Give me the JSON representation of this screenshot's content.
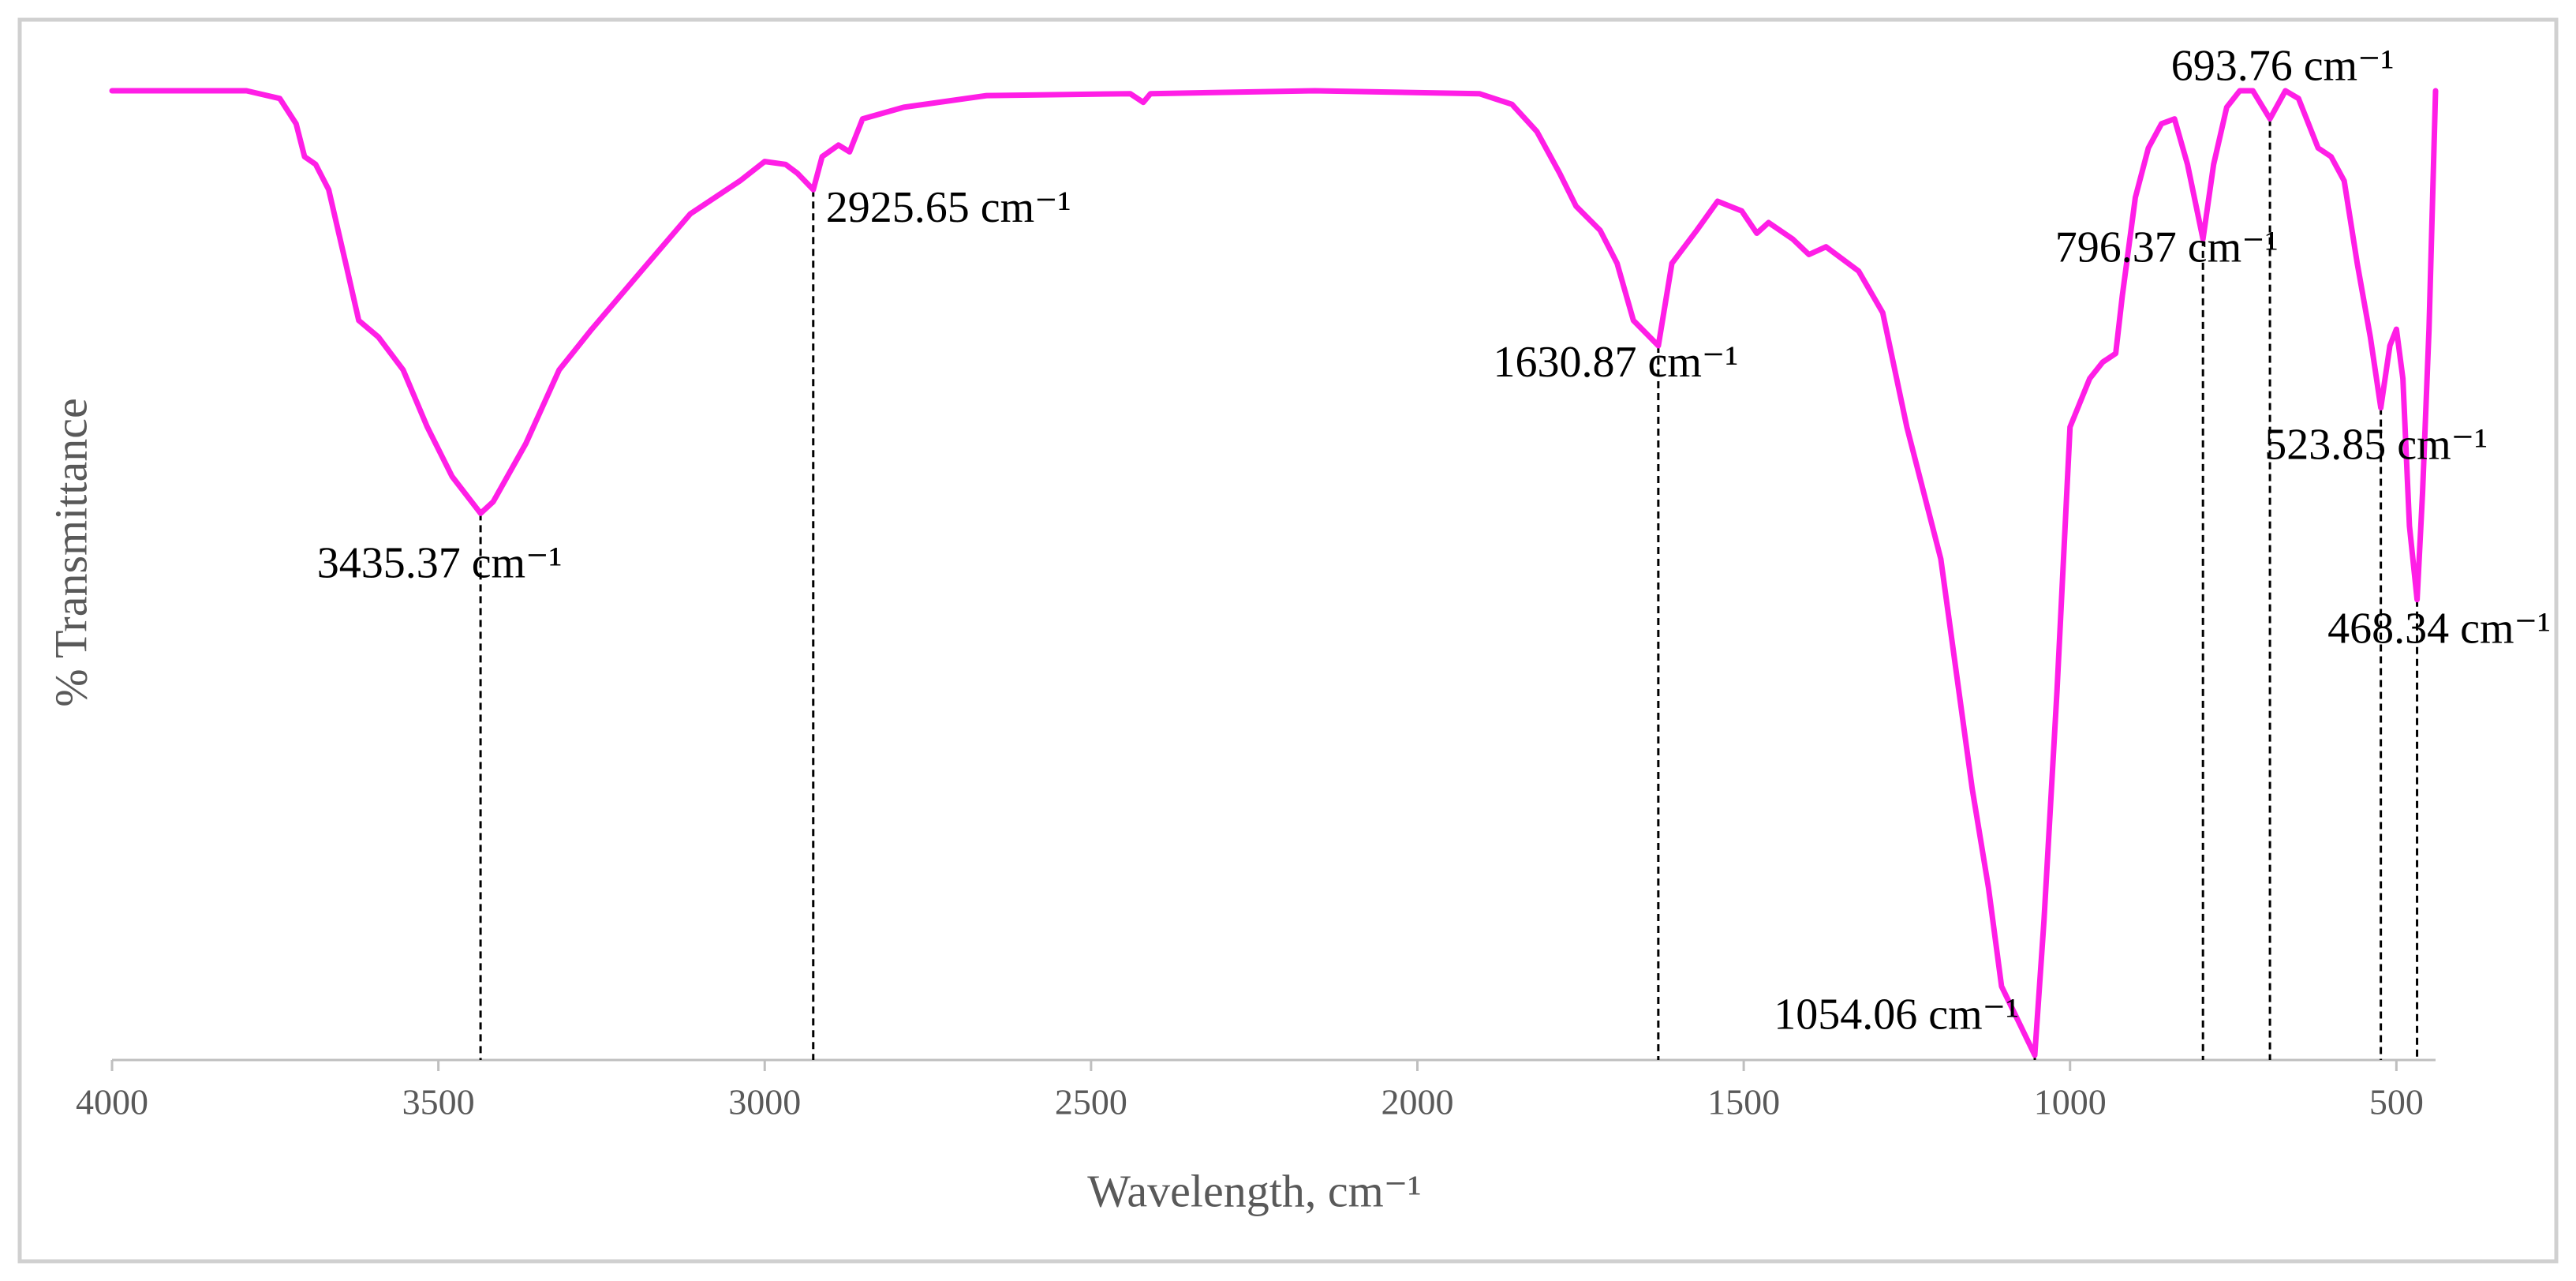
{
  "chart_data": {
    "type": "line",
    "x_label": "Wavelength, cm⁻¹",
    "y_label": "% Transmittance",
    "color": "#ff1ee6",
    "xlim": [
      4000,
      440
    ],
    "ylim": [
      0,
      100
    ],
    "xticks": [
      4000,
      3500,
      3000,
      2500,
      2000,
      1500,
      1000,
      500
    ],
    "x": [
      4000,
      3794,
      3743,
      3718,
      3705,
      3688,
      3668,
      3642,
      3622,
      3592,
      3554,
      3517,
      3479,
      3435.37,
      3416,
      3366,
      3315,
      3265,
      3189,
      3114,
      3038,
      3000,
      2968,
      2950,
      2925.65,
      2912,
      2887,
      2870,
      2850,
      2787,
      2660,
      2440,
      2420,
      2409,
      2157,
      1905,
      1855,
      1817,
      1782,
      1757,
      1720,
      1694,
      1669,
      1630.87,
      1610,
      1572,
      1540,
      1503,
      1480,
      1462,
      1425,
      1400,
      1374,
      1324,
      1287,
      1250,
      1198,
      1150,
      1125,
      1105,
      1054.06,
      1040,
      1020,
      1000,
      970,
      950,
      930,
      920,
      900,
      880,
      860,
      840,
      820,
      796.37,
      780,
      760,
      740,
      720,
      693.76,
      670,
      650,
      620,
      600,
      580,
      560,
      540,
      523.85,
      510,
      500,
      490,
      480,
      468.34,
      460,
      450,
      440
    ],
    "values": [
      100,
      100,
      99.2,
      96.6,
      93.2,
      92.4,
      89.8,
      82.2,
      76.3,
      74.6,
      71.2,
      65.3,
      60.2,
      56.4,
      57.6,
      63.6,
      71.2,
      75.4,
      81.4,
      87.3,
      90.7,
      92.7,
      92.4,
      91.5,
      89.8,
      93.2,
      94.4,
      93.7,
      97.1,
      98.3,
      99.5,
      99.7,
      98.8,
      99.7,
      100,
      99.7,
      98.6,
      95.8,
      91.5,
      88.1,
      85.6,
      82.2,
      76.3,
      73.7,
      82.2,
      85.6,
      88.6,
      87.6,
      85.3,
      86.4,
      84.7,
      83.1,
      83.9,
      81.4,
      77.1,
      65.3,
      51.7,
      28,
      17.8,
      7.6,
      0.5,
      14.4,
      38.1,
      65.3,
      70.3,
      72,
      72.9,
      78.8,
      89,
      94.1,
      96.6,
      97.1,
      92.4,
      84.7,
      92.4,
      98.3,
      100,
      100,
      97.1,
      100,
      99.2,
      94.1,
      93.2,
      90.7,
      82.2,
      74.6,
      67.3,
      73.7,
      75.4,
      70.3,
      55.1,
      47.5,
      58.5,
      75.4,
      100
    ],
    "annotations": [
      {
        "x": 3435.37,
        "y": 56.4,
        "label": "3435.37 cm⁻¹"
      },
      {
        "x": 2925.65,
        "y": 89.8,
        "label": "2925.65 cm⁻¹"
      },
      {
        "x": 1630.87,
        "y": 73.7,
        "label": "1630.87 cm⁻¹"
      },
      {
        "x": 1054.06,
        "y": 0.5,
        "label": "1054.06 cm⁻¹"
      },
      {
        "x": 796.37,
        "y": 84.7,
        "label": "796.37 cm⁻¹"
      },
      {
        "x": 693.76,
        "y": 97.1,
        "label": "693.76 cm⁻¹"
      },
      {
        "x": 523.85,
        "y": 67.3,
        "label": "523.85 cm⁻¹"
      },
      {
        "x": 468.34,
        "y": 47.5,
        "label": "468.34 cm⁻¹"
      }
    ]
  }
}
